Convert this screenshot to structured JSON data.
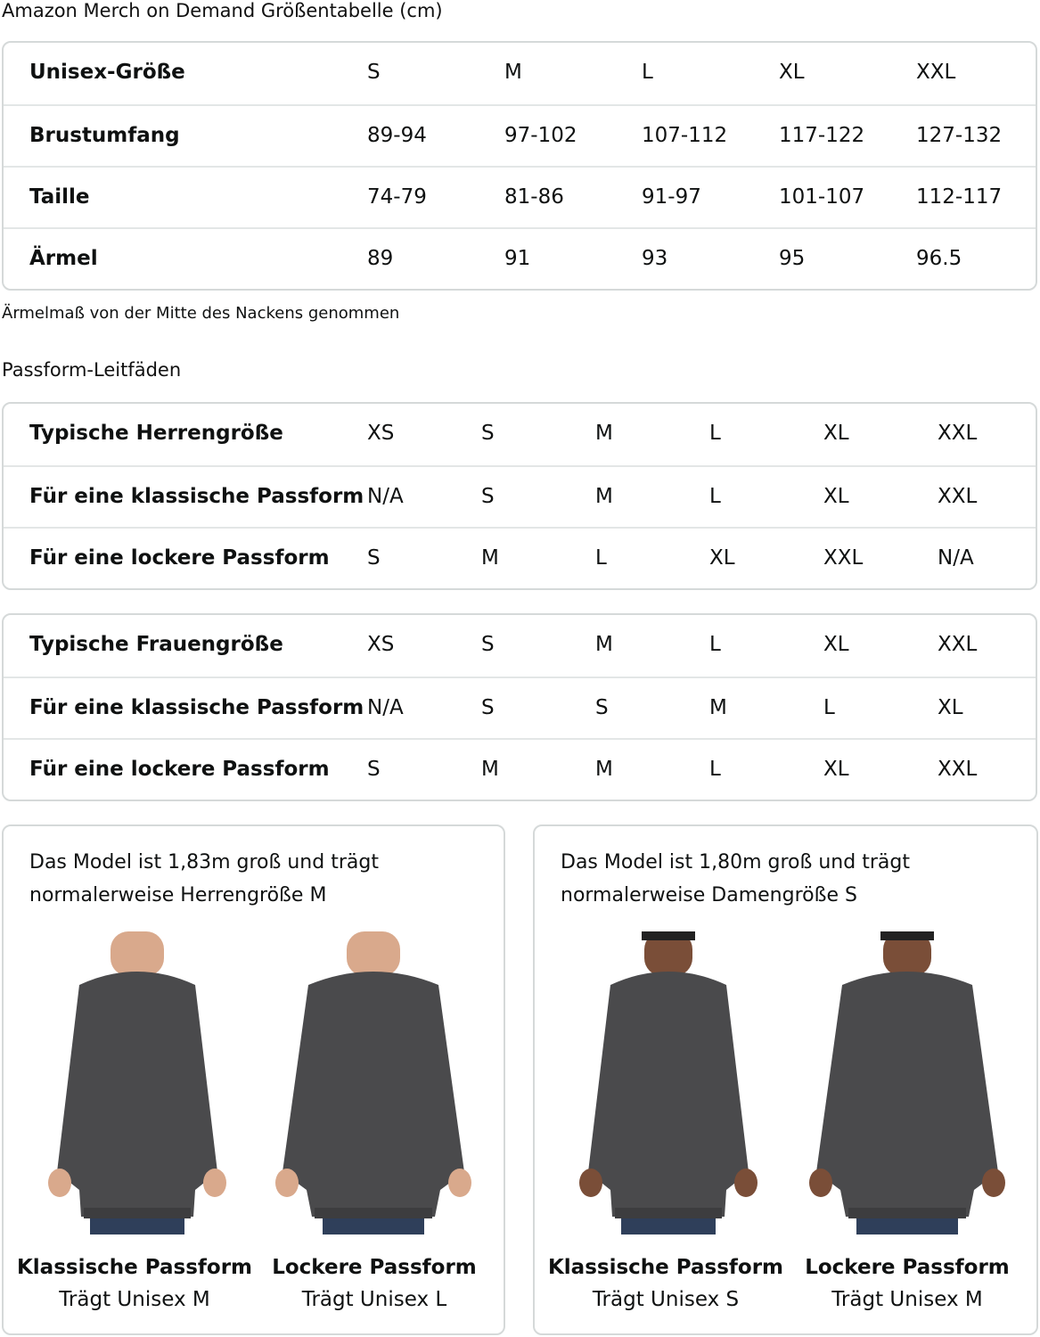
{
  "title": "Amazon Merch on Demand Größentabelle (cm)",
  "unisex_table": {
    "rows": [
      {
        "label": "Unisex-Größe",
        "values": [
          "S",
          "M",
          "L",
          "XL",
          "XXL"
        ]
      },
      {
        "label": "Brustumfang",
        "values": [
          "89-94",
          "97-102",
          "107-112",
          "117-122",
          "127-132"
        ]
      },
      {
        "label": "Taille",
        "values": [
          "74-79",
          "81-86",
          "91-97",
          "101-107",
          "112-117"
        ]
      },
      {
        "label": "Ärmel",
        "values": [
          "89",
          "91",
          "93",
          "95",
          "96.5"
        ]
      }
    ]
  },
  "sleeve_note": "Ärmelmaß von der Mitte des Nackens genommen",
  "fit_guide_title": "Passform-Leitfäden",
  "men_table": {
    "rows": [
      {
        "label": "Typische Herrengröße",
        "values": [
          "XS",
          "S",
          "M",
          "L",
          "XL",
          "XXL"
        ]
      },
      {
        "label": "Für eine klassische Passform",
        "values": [
          "N/A",
          "S",
          "M",
          "L",
          "XL",
          "XXL"
        ]
      },
      {
        "label": "Für eine lockere Passform",
        "values": [
          "S",
          "M",
          "L",
          "XL",
          "XXL",
          "N/A"
        ]
      }
    ]
  },
  "women_table": {
    "rows": [
      {
        "label": "Typische Frauengröße",
        "values": [
          "XS",
          "S",
          "M",
          "L",
          "XL",
          "XXL"
        ]
      },
      {
        "label": "Für eine klassische Passform",
        "values": [
          "N/A",
          "S",
          "S",
          "M",
          "L",
          "XL"
        ]
      },
      {
        "label": "Für eine lockere Passform",
        "values": [
          "S",
          "M",
          "M",
          "L",
          "XL",
          "XXL"
        ]
      }
    ]
  },
  "cards": [
    {
      "line1": "Das Model ist 1,83m groß und trägt",
      "line2": "normalerweise Herrengröße M",
      "photos": [
        {
          "title": "Klassische Passform",
          "sub": "Trägt Unisex M"
        },
        {
          "title": "Lockere Passform",
          "sub": "Trägt Unisex L"
        }
      ]
    },
    {
      "line1": "Das Model ist 1,80m groß und trägt",
      "line2": "normalerweise Damengröße S",
      "photos": [
        {
          "title": "Klassische Passform",
          "sub": "Trägt Unisex S"
        },
        {
          "title": "Lockere Passform",
          "sub": "Trägt Unisex M"
        }
      ]
    }
  ],
  "colors": {
    "sweatshirt": "#4a4a4c",
    "jeans": "#2f3f5a",
    "border": "#d5d9d9"
  }
}
